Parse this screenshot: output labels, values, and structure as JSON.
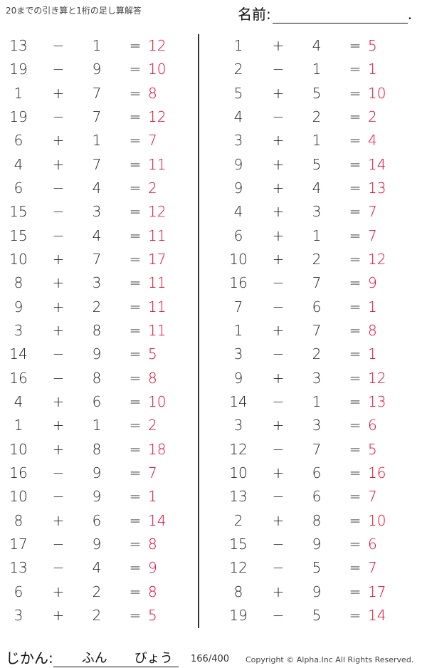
{
  "header": {
    "title": "20までの引き算と1桁の足し算解答",
    "name_label": "名前:",
    "name_end": "."
  },
  "answer_color": "#e8002a",
  "left": [
    [
      "13",
      "−",
      "1",
      "=",
      "12"
    ],
    [
      "19",
      "−",
      "9",
      "=",
      "10"
    ],
    [
      "1",
      "+",
      "7",
      "=",
      "8"
    ],
    [
      "19",
      "−",
      "7",
      "=",
      "12"
    ],
    [
      "6",
      "+",
      "1",
      "=",
      "7"
    ],
    [
      "4",
      "+",
      "7",
      "=",
      "11"
    ],
    [
      "6",
      "−",
      "4",
      "=",
      "2"
    ],
    [
      "15",
      "−",
      "3",
      "=",
      "12"
    ],
    [
      "15",
      "−",
      "4",
      "=",
      "11"
    ],
    [
      "10",
      "+",
      "7",
      "=",
      "17"
    ],
    [
      "8",
      "+",
      "3",
      "=",
      "11"
    ],
    [
      "9",
      "+",
      "2",
      "=",
      "11"
    ],
    [
      "3",
      "+",
      "8",
      "=",
      "11"
    ],
    [
      "14",
      "−",
      "9",
      "=",
      "5"
    ],
    [
      "16",
      "−",
      "8",
      "=",
      "8"
    ],
    [
      "4",
      "+",
      "6",
      "=",
      "10"
    ],
    [
      "1",
      "+",
      "1",
      "=",
      "2"
    ],
    [
      "10",
      "+",
      "8",
      "=",
      "18"
    ],
    [
      "16",
      "−",
      "9",
      "=",
      "7"
    ],
    [
      "10",
      "−",
      "9",
      "=",
      "1"
    ],
    [
      "8",
      "+",
      "6",
      "=",
      "14"
    ],
    [
      "17",
      "−",
      "9",
      "=",
      "8"
    ],
    [
      "13",
      "−",
      "4",
      "=",
      "9"
    ],
    [
      "6",
      "+",
      "2",
      "=",
      "8"
    ],
    [
      "3",
      "+",
      "2",
      "=",
      "5"
    ]
  ],
  "right": [
    [
      "1",
      "+",
      "4",
      "=",
      "5"
    ],
    [
      "2",
      "−",
      "1",
      "=",
      "1"
    ],
    [
      "5",
      "+",
      "5",
      "=",
      "10"
    ],
    [
      "4",
      "−",
      "2",
      "=",
      "2"
    ],
    [
      "3",
      "+",
      "1",
      "=",
      "4"
    ],
    [
      "9",
      "+",
      "5",
      "=",
      "14"
    ],
    [
      "9",
      "+",
      "4",
      "=",
      "13"
    ],
    [
      "4",
      "+",
      "3",
      "=",
      "7"
    ],
    [
      "6",
      "+",
      "1",
      "=",
      "7"
    ],
    [
      "10",
      "+",
      "2",
      "=",
      "12"
    ],
    [
      "16",
      "−",
      "7",
      "=",
      "9"
    ],
    [
      "7",
      "−",
      "6",
      "=",
      "1"
    ],
    [
      "1",
      "+",
      "7",
      "=",
      "8"
    ],
    [
      "3",
      "−",
      "2",
      "=",
      "1"
    ],
    [
      "9",
      "+",
      "3",
      "=",
      "12"
    ],
    [
      "14",
      "−",
      "1",
      "=",
      "13"
    ],
    [
      "3",
      "+",
      "3",
      "=",
      "6"
    ],
    [
      "12",
      "−",
      "7",
      "=",
      "5"
    ],
    [
      "10",
      "+",
      "6",
      "=",
      "16"
    ],
    [
      "13",
      "−",
      "6",
      "=",
      "7"
    ],
    [
      "2",
      "+",
      "8",
      "=",
      "10"
    ],
    [
      "15",
      "−",
      "9",
      "=",
      "6"
    ],
    [
      "12",
      "−",
      "5",
      "=",
      "7"
    ],
    [
      "8",
      "+",
      "9",
      "=",
      "17"
    ],
    [
      "19",
      "−",
      "5",
      "=",
      "14"
    ]
  ],
  "footer": {
    "time_label": "じかん:",
    "minutes": "ふん",
    "seconds": "びょう",
    "count": "166/400",
    "copyright": "Copyright ©  Alpha.Inc All Rights Reserved."
  }
}
